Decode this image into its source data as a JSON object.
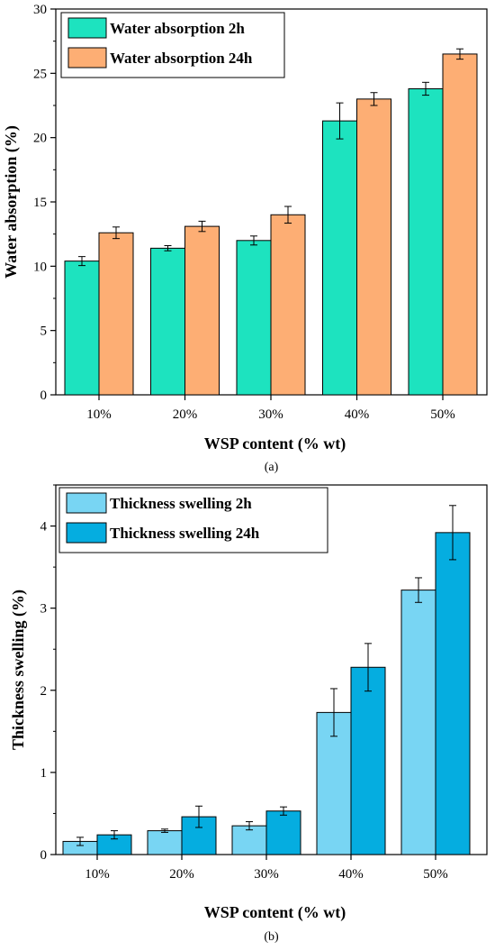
{
  "chart_data": [
    {
      "type": "bar",
      "panel_label": "(a)",
      "categories": [
        "10%",
        "20%",
        "30%",
        "40%",
        "50%"
      ],
      "series": [
        {
          "name": "Water absorption 2h",
          "values": [
            10.4,
            11.4,
            12.0,
            21.3,
            23.8
          ],
          "errors": [
            0.35,
            0.2,
            0.35,
            1.4,
            0.5
          ],
          "color": "#1de3bf"
        },
        {
          "name": "Water absorption 24h",
          "values": [
            12.6,
            13.1,
            14.0,
            23.0,
            26.5
          ],
          "errors": [
            0.45,
            0.4,
            0.65,
            0.5,
            0.4
          ],
          "color": "#fdae74"
        }
      ],
      "xlabel": "WSP content (% wt)",
      "ylabel": "Water absorption (%)",
      "ylim": [
        0,
        30
      ],
      "yticks": [
        "0",
        "5",
        "10",
        "15",
        "20",
        "25",
        "30"
      ],
      "legend": "top-left",
      "grid": false
    },
    {
      "type": "bar",
      "panel_label": "(b)",
      "categories": [
        "10%",
        "20%",
        "30%",
        "40%",
        "50%"
      ],
      "series": [
        {
          "name": "Thickness swelling 2h",
          "values": [
            0.16,
            0.29,
            0.35,
            1.73,
            3.22
          ],
          "errors": [
            0.05,
            0.02,
            0.05,
            0.29,
            0.15
          ],
          "color": "#78d5f3"
        },
        {
          "name": "Thickness swelling 24h",
          "values": [
            0.24,
            0.46,
            0.53,
            2.28,
            3.92
          ],
          "errors": [
            0.05,
            0.13,
            0.05,
            0.29,
            0.33
          ],
          "color": "#05ade0"
        }
      ],
      "xlabel": "WSP content (% wt)",
      "ylabel": "Thickness swelling (%)",
      "ylim": [
        0,
        4.5
      ],
      "yticks": [
        "0",
        "1",
        "2",
        "3",
        "4"
      ],
      "legend": "top-left",
      "grid": false
    }
  ]
}
